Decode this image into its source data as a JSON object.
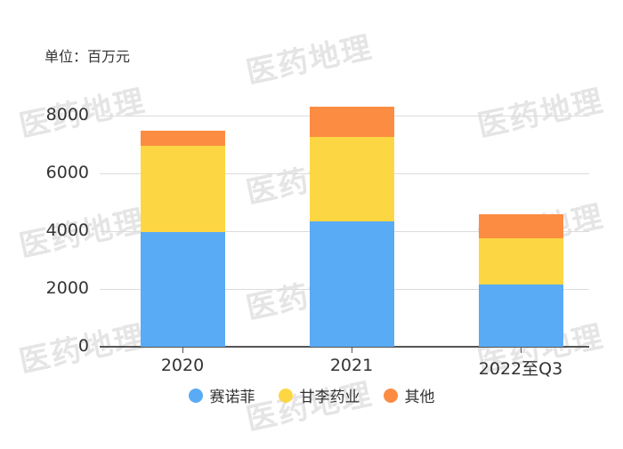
{
  "unit_label": "单位：百万元",
  "watermark_text": "医药地理",
  "colors": {
    "赛诺菲": "#5aabf5",
    "甘李药业": "#fdd743",
    "其他": "#fd8c43"
  },
  "chart_data": {
    "type": "bar",
    "stacked": true,
    "title": "",
    "unit": "单位：百万元",
    "xlabel": "",
    "ylabel": "",
    "categories": [
      "2020",
      "2021",
      "2022至Q3"
    ],
    "series": [
      {
        "name": "赛诺菲",
        "color": "#5aabf5",
        "values": [
          3970,
          4340,
          2150
        ]
      },
      {
        "name": "甘李药业",
        "color": "#fdd743",
        "values": [
          2980,
          2920,
          1600
        ]
      },
      {
        "name": "其他",
        "color": "#fd8c43",
        "values": [
          520,
          1050,
          830
        ]
      }
    ],
    "yticks": [
      "0",
      "2000",
      "4000",
      "6000",
      "8000"
    ],
    "ylim": [
      0,
      8000
    ],
    "grid": true,
    "legend_position": "bottom"
  },
  "legend": [
    {
      "label": "赛诺菲",
      "color": "#5aabf5"
    },
    {
      "label": "甘李药业",
      "color": "#fdd743"
    },
    {
      "label": "其他",
      "color": "#fd8c43"
    }
  ]
}
